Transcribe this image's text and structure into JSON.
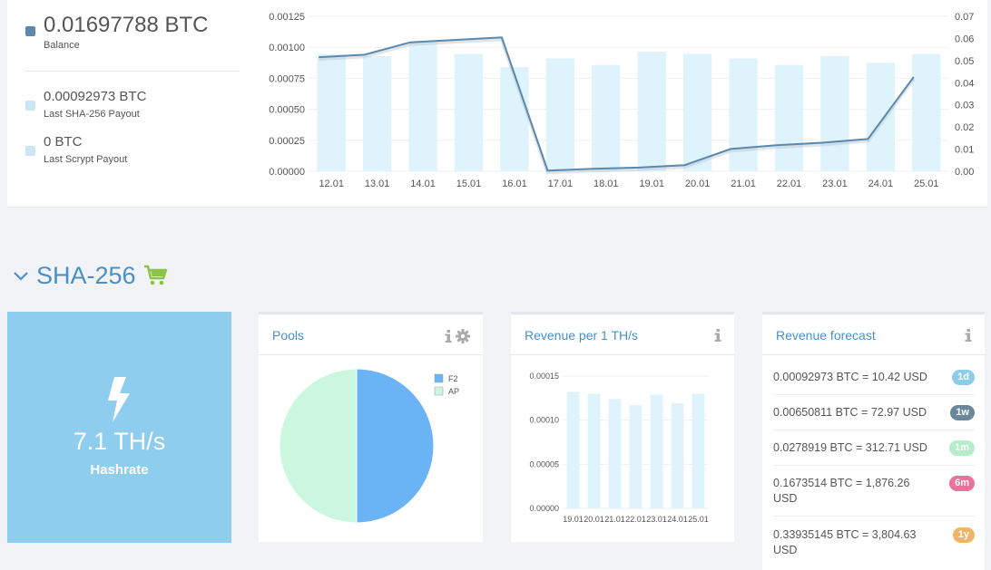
{
  "summary": {
    "balance_value": "0.01697788 BTC",
    "balance_label": "Balance",
    "sha_payout_value": "0.00092973 BTC",
    "sha_payout_label": "Last SHA-256 Payout",
    "scrypt_payout_value": "0 BTC",
    "scrypt_payout_label": "Last Scrypt Payout"
  },
  "section": {
    "title": "SHA-256",
    "cart_icon": "shopping-cart-icon",
    "collapse_icon": "chevron-down-icon"
  },
  "hashrate": {
    "value": "7.1 TH/s",
    "label": "Hashrate",
    "icon": "lightning-bolt-icon"
  },
  "pools": {
    "title": "Pools",
    "info_icon": "info-icon",
    "settings_icon": "gear-icon"
  },
  "revenue": {
    "title": "Revenue per 1 TH/s",
    "info_icon": "info-icon"
  },
  "forecast": {
    "title": "Revenue forecast",
    "info_icon": "info-icon",
    "rows": [
      {
        "text": "0.00092973 BTC = 10.42 USD",
        "badge": "1d",
        "color": "#8ccbe9"
      },
      {
        "text": "0.00650811 BTC = 72.97 USD",
        "badge": "1w",
        "color": "#6b879c"
      },
      {
        "text": "0.0278919 BTC = 312.71 USD",
        "badge": "1m",
        "color": "#b5ecc9"
      },
      {
        "text": "0.1673514 BTC = 1,876.26 USD",
        "badge": "6m",
        "color": "#e8739a"
      },
      {
        "text": "0.33935145 BTC = 3,804.63 USD",
        "badge": "1y",
        "color": "#efb465"
      }
    ]
  },
  "chart_data": [
    {
      "type": "bar+line",
      "title": "",
      "categories": [
        "12.01",
        "13.01",
        "14.01",
        "15.01",
        "16.01",
        "17.01",
        "18.01",
        "19.01",
        "20.01",
        "21.01",
        "22.01",
        "23.01",
        "24.01",
        "25.01"
      ],
      "series": [
        {
          "type": "bar",
          "axis": "right",
          "values": [
            0.053,
            0.052,
            0.058,
            0.053,
            0.047,
            0.051,
            0.048,
            0.054,
            0.053,
            0.051,
            0.048,
            0.052,
            0.049,
            0.053
          ],
          "color": "#def3fc"
        },
        {
          "type": "line",
          "axis": "left",
          "values": [
            0.00092,
            0.00094,
            0.00104,
            0.00106,
            0.00108,
            5e-06,
            2e-05,
            3e-05,
            5e-05,
            0.00018,
            0.00021,
            0.00023,
            0.00026,
            0.00076
          ],
          "color": "#5a89ad"
        }
      ],
      "y_left": {
        "ylim": [
          0,
          0.00125
        ],
        "ticks": [
          "0.00000",
          "0.00025",
          "0.00050",
          "0.00075",
          "0.00100",
          "0.00125"
        ]
      },
      "y_right": {
        "ylim": [
          0,
          0.07
        ],
        "ticks": [
          "0.00",
          "0.01",
          "0.02",
          "0.03",
          "0.04",
          "0.05",
          "0.06",
          "0.07"
        ]
      },
      "grid": true
    },
    {
      "type": "pie",
      "title": "",
      "slices": [
        {
          "label": "F2",
          "value": 50,
          "color": "#6ab4f5"
        },
        {
          "label": "AP",
          "value": 50,
          "color": "#cbf7de"
        }
      ],
      "legend_position": "top-right"
    },
    {
      "type": "bar",
      "title": "",
      "categories": [
        "19.01",
        "20.01",
        "21.01",
        "22.01",
        "23.01",
        "24.01",
        "25.01"
      ],
      "values": [
        0.000132,
        0.00013,
        0.000124,
        0.000117,
        0.000129,
        0.000119,
        0.00013
      ],
      "ylim": [
        0,
        0.00015
      ],
      "ticks": [
        "0.00000",
        "0.00005",
        "0.00010",
        "0.00015"
      ],
      "color": "#def3fc",
      "grid": true
    }
  ]
}
